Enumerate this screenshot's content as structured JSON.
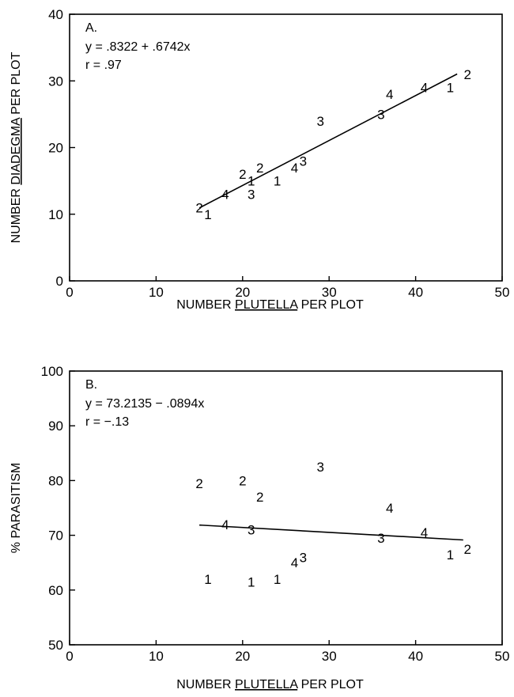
{
  "chart_data": [
    {
      "type": "scatter",
      "panel_label": "A.",
      "annotations": [
        "y = .8322 + .6742x",
        "r = .97"
      ],
      "xlabel_parts": [
        "NUMBER ",
        "PLUTELLA",
        " PER PLOT"
      ],
      "ylabel_parts": [
        "NUMBER ",
        "DIADEGMA",
        " PER PLOT"
      ],
      "xlim": [
        0,
        50
      ],
      "ylim": [
        0,
        40
      ],
      "xticks": [
        "0",
        "10",
        "20",
        "30",
        "40",
        "50"
      ],
      "yticks": [
        "0",
        "10",
        "20",
        "30",
        "40"
      ],
      "points": [
        {
          "label": "1",
          "x": 16,
          "y": 10
        },
        {
          "label": "2",
          "x": 15,
          "y": 11
        },
        {
          "label": "4",
          "x": 18,
          "y": 13
        },
        {
          "label": "3",
          "x": 21,
          "y": 13
        },
        {
          "label": "2",
          "x": 20,
          "y": 16
        },
        {
          "label": "1",
          "x": 21,
          "y": 15
        },
        {
          "label": "2",
          "x": 22,
          "y": 17
        },
        {
          "label": "1",
          "x": 24,
          "y": 15
        },
        {
          "label": "4",
          "x": 26,
          "y": 17
        },
        {
          "label": "3",
          "x": 27,
          "y": 18
        },
        {
          "label": "3",
          "x": 29,
          "y": 24
        },
        {
          "label": "3",
          "x": 36,
          "y": 25
        },
        {
          "label": "4",
          "x": 37,
          "y": 28
        },
        {
          "label": "4",
          "x": 41,
          "y": 29
        },
        {
          "label": "1",
          "x": 44,
          "y": 29
        },
        {
          "label": "2",
          "x": 46,
          "y": 31
        }
      ],
      "fit": {
        "x": [
          15,
          44.8
        ],
        "intercept": 0.8322,
        "slope": 0.6742
      }
    },
    {
      "type": "scatter",
      "panel_label": "B.",
      "annotations": [
        "y = 73.2135 − .0894x",
        "r = −.13"
      ],
      "xlabel_parts": [
        "NUMBER ",
        "PLUTELLA",
        " PER PLOT"
      ],
      "ylabel_parts": [
        "% PARASITISM"
      ],
      "xlim": [
        0,
        50
      ],
      "ylim": [
        50,
        100
      ],
      "xticks": [
        "0",
        "10",
        "20",
        "30",
        "40",
        "50"
      ],
      "yticks": [
        "50",
        "60",
        "70",
        "80",
        "90",
        "100"
      ],
      "points": [
        {
          "label": "2",
          "x": 15,
          "y": 79.5
        },
        {
          "label": "2",
          "x": 20,
          "y": 80
        },
        {
          "label": "2",
          "x": 22,
          "y": 77
        },
        {
          "label": "3",
          "x": 29,
          "y": 82.5
        },
        {
          "label": "4",
          "x": 18,
          "y": 72
        },
        {
          "label": "3",
          "x": 21,
          "y": 71
        },
        {
          "label": "4",
          "x": 37,
          "y": 75
        },
        {
          "label": "3",
          "x": 36,
          "y": 69.5
        },
        {
          "label": "4",
          "x": 41,
          "y": 70.5
        },
        {
          "label": "2",
          "x": 46,
          "y": 67.5
        },
        {
          "label": "1",
          "x": 44,
          "y": 66.5
        },
        {
          "label": "4",
          "x": 26,
          "y": 65
        },
        {
          "label": "3",
          "x": 27,
          "y": 66
        },
        {
          "label": "1",
          "x": 16,
          "y": 62
        },
        {
          "label": "1",
          "x": 21,
          "y": 61.5
        },
        {
          "label": "1",
          "x": 24,
          "y": 62
        }
      ],
      "fit": {
        "x": [
          15,
          45.5
        ],
        "intercept": 73.2135,
        "slope": -0.0894
      }
    }
  ]
}
